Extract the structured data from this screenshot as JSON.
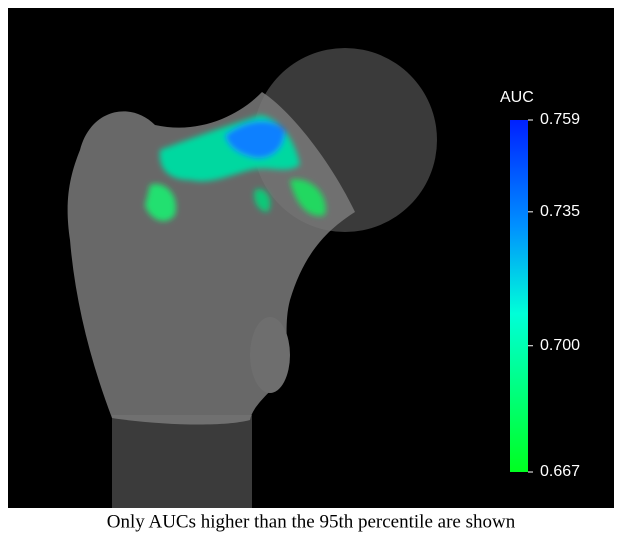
{
  "colorbar": {
    "title": "AUC",
    "lim": [
      0.667,
      0.759
    ],
    "ticks": [
      {
        "value": 0.759,
        "label": "0.759"
      },
      {
        "value": 0.735,
        "label": "0.735"
      },
      {
        "value": 0.7,
        "label": "0.700"
      },
      {
        "value": 0.667,
        "label": "0.667"
      }
    ]
  },
  "caption": "Only AUCs higher than the 95th percentile are shown"
}
